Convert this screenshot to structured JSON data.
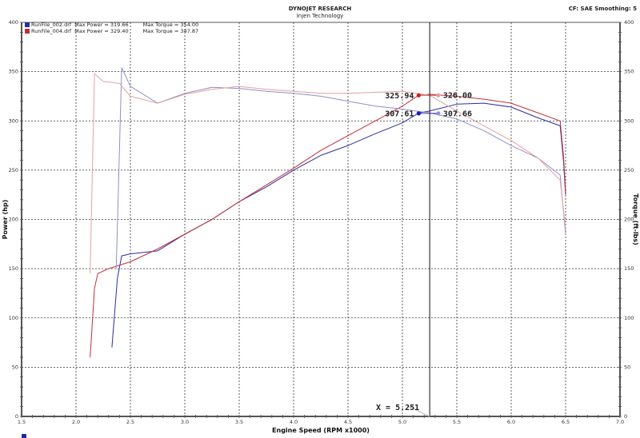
{
  "header": {
    "title": "DYNOJET RESEARCH",
    "subtitle": "Injen Technology",
    "correction": "CF: SAE  Smoothing: 5"
  },
  "legend": [
    {
      "name": "RunFile_002.drf",
      "max_power": "Max Power = 319.66",
      "max_torque": "Max Torque = 354.00",
      "color": "#2a2f9c"
    },
    {
      "name": "RunFile_004.drf",
      "max_power": "Max Power = 329.40",
      "max_torque": "Max Torque = 347.87",
      "color": "#c0303a"
    }
  ],
  "cursor": {
    "label": "X = 5.251",
    "x": 5.251
  },
  "markers": [
    {
      "label": "325.94",
      "series": "RunFile_004 power",
      "color": "#d02020"
    },
    {
      "label": "326.00",
      "series": "RunFile_004 torque",
      "color": "#e0a0a0"
    },
    {
      "label": "307.61",
      "series": "RunFile_002 power",
      "color": "#1a1acc"
    },
    {
      "label": "307.66",
      "series": "RunFile_002 torque",
      "color": "#9090dd"
    }
  ],
  "chart_data": {
    "type": "line",
    "title": "DYNOJET RESEARCH - Injen Technology",
    "xlabel": "Engine Speed (RPM x1000)",
    "ylabel": "Power (hp)",
    "y2label": "Torque (ft-lbs)",
    "xlim": [
      1.5,
      7.0
    ],
    "ylim": [
      0,
      400
    ],
    "y2lim": [
      0,
      400
    ],
    "xticks": [
      "1.5",
      "2.0",
      "2.5",
      "3.0",
      "3.5",
      "4.0",
      "4.5",
      "5.0",
      "5.5",
      "6.0",
      "6.5",
      "7.0"
    ],
    "yticks": [
      "0",
      "50",
      "100",
      "150",
      "200",
      "250",
      "300",
      "350",
      "400"
    ],
    "grid": true,
    "legend_position": "top-left",
    "series": [
      {
        "name": "RunFile_002 Power (hp)",
        "color": "#2a2f9c",
        "x": [
          2.33,
          2.38,
          2.42,
          2.5,
          2.75,
          3.0,
          3.25,
          3.5,
          3.75,
          4.0,
          4.25,
          4.5,
          4.75,
          5.0,
          5.15,
          5.25,
          5.5,
          5.75,
          6.0,
          6.25,
          6.45,
          6.48,
          6.5
        ],
        "y": [
          70,
          140,
          163,
          165,
          168,
          185,
          200,
          218,
          233,
          250,
          265,
          275,
          287,
          298,
          308,
          310,
          317,
          318,
          314,
          303,
          295,
          260,
          225
        ]
      },
      {
        "name": "RunFile_004 Power (hp)",
        "color": "#c0303a",
        "x": [
          2.13,
          2.17,
          2.2,
          2.3,
          2.5,
          2.75,
          3.0,
          3.25,
          3.5,
          3.75,
          4.0,
          4.25,
          4.5,
          4.75,
          5.0,
          5.15,
          5.25,
          5.5,
          5.75,
          6.0,
          6.25,
          6.45,
          6.48,
          6.5
        ],
        "y": [
          60,
          130,
          145,
          150,
          157,
          170,
          185,
          200,
          218,
          235,
          252,
          270,
          285,
          300,
          315,
          326,
          327,
          325,
          322,
          318,
          308,
          300,
          265,
          228
        ]
      },
      {
        "name": "RunFile_002 Torque (ft-lbs)",
        "color": "#8e90c8",
        "x": [
          2.37,
          2.42,
          2.5,
          2.75,
          3.0,
          3.25,
          3.5,
          3.75,
          4.0,
          4.25,
          4.5,
          4.75,
          5.0,
          5.25,
          5.5,
          5.75,
          6.0,
          6.25,
          6.45,
          6.5
        ],
        "y": [
          150,
          354,
          335,
          318,
          328,
          334,
          333,
          330,
          328,
          325,
          320,
          315,
          312,
          308,
          302,
          290,
          275,
          262,
          245,
          185
        ]
      },
      {
        "name": "RunFile_004 Torque (ft-lbs)",
        "color": "#e2a0a4",
        "x": [
          2.13,
          2.17,
          2.25,
          2.4,
          2.5,
          2.75,
          3.0,
          3.25,
          3.5,
          3.75,
          4.0,
          4.25,
          4.5,
          4.75,
          5.0,
          5.25,
          5.5,
          5.75,
          6.0,
          6.25,
          6.45,
          6.5
        ],
        "y": [
          145,
          348,
          340,
          338,
          325,
          318,
          327,
          332,
          335,
          332,
          330,
          328,
          328,
          329,
          330,
          326,
          310,
          295,
          280,
          262,
          240,
          190
        ]
      }
    ]
  }
}
